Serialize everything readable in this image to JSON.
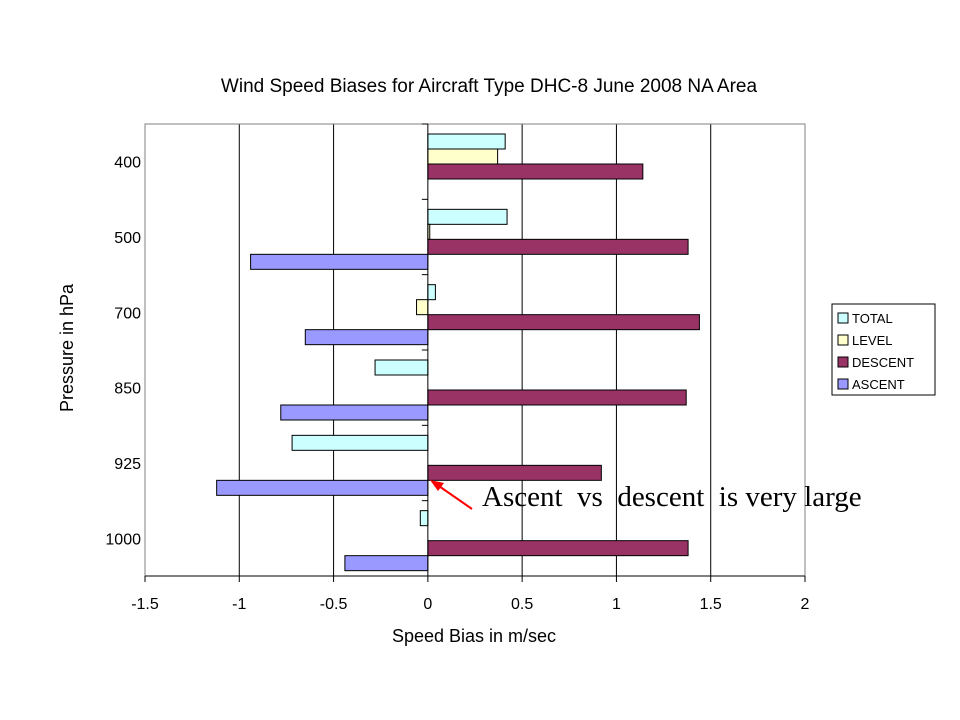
{
  "chart_data": {
    "type": "bar",
    "orientation": "horizontal",
    "title": "Wind Speed Biases for Aircraft Type DHC-8 June 2008 NA Area",
    "xlabel": "Speed Bias in m/sec",
    "ylabel": "Pressure in hPa",
    "xlim": [
      -1.5,
      2
    ],
    "x_ticks": [
      "-1.5",
      "-1",
      "-0.5",
      "0",
      "0.5",
      "1",
      "1.5",
      "2"
    ],
    "x_tick_values": [
      -1.5,
      -1,
      -0.5,
      0,
      0.5,
      1,
      1.5,
      2
    ],
    "categories": [
      "400",
      "500",
      "700",
      "850",
      "925",
      "1000"
    ],
    "grid": "vertical major gridlines",
    "legend_position": "right",
    "series": [
      {
        "name": "TOTAL",
        "color": "#CCFFFF",
        "values": [
          0.41,
          0.42,
          0.04,
          -0.28,
          -0.72,
          -0.04
        ]
      },
      {
        "name": "LEVEL",
        "color": "#FFFFCC",
        "values": [
          0.37,
          0.01,
          -0.06,
          0,
          0,
          0
        ]
      },
      {
        "name": "DESCENT",
        "color": "#993366",
        "values": [
          1.14,
          1.38,
          1.44,
          1.37,
          0.92,
          1.38
        ]
      },
      {
        "name": "ASCENT",
        "color": "#9999FF",
        "values": [
          0,
          -0.94,
          -0.65,
          -0.78,
          -1.12,
          -0.44
        ]
      }
    ],
    "annotation": {
      "text": "Ascent  vs  descent  is very large",
      "arrow_color": "#FF0000",
      "arrow_target": {
        "category": "925",
        "x_value": 0
      }
    }
  }
}
